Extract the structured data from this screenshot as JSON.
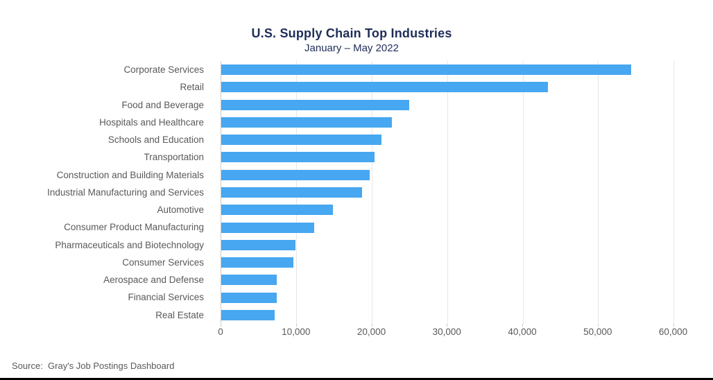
{
  "chart_data": {
    "type": "bar",
    "orientation": "horizontal",
    "title": "U.S. Supply Chain Top Industries",
    "subtitle": "January – May 2022",
    "xlabel": "",
    "ylabel": "",
    "categories": [
      "Corporate Services",
      "Retail",
      "Food and Beverage",
      "Hospitals and Healthcare",
      "Schools and Education",
      "Transportation",
      "Construction and Building Materials",
      "Industrial Manufacturing and Services",
      "Automotive",
      "Consumer Product Manufacturing",
      "Pharmaceuticals and Biotechnology",
      "Consumer Services",
      "Aerospace and Defense",
      "Financial Services",
      "Real Estate"
    ],
    "values": [
      54300,
      43300,
      24900,
      22600,
      21200,
      20300,
      19700,
      18700,
      14800,
      12300,
      9800,
      9600,
      7400,
      7400,
      7100
    ],
    "xlim": [
      0,
      60000
    ],
    "xticks": [
      0,
      10000,
      20000,
      30000,
      40000,
      50000,
      60000
    ],
    "xtick_labels": [
      "0",
      "10,000",
      "20,000",
      "30,000",
      "40,000",
      "50,000",
      "60,000"
    ],
    "grid": true,
    "legend": false,
    "bar_color": "#47a7f0"
  },
  "footer": {
    "source": "Source:  Gray's Job Postings Dashboard"
  },
  "colors": {
    "title_navy": "#1f2d58",
    "label_gray": "#595959",
    "bar_blue": "#47a7f0",
    "gridline": "#e7e7e7",
    "axis_line": "#c9c9c9"
  }
}
